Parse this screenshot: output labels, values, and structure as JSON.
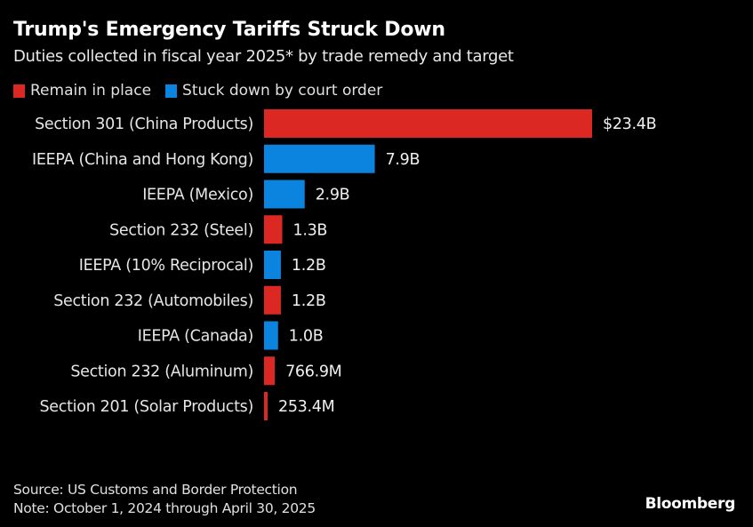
{
  "chart_data": {
    "type": "bar",
    "orientation": "horizontal",
    "title": "Trump's Emergency Tariffs Struck Down",
    "subtitle": "Duties collected in fiscal year 2025* by trade remedy and target",
    "xlabel": "",
    "ylabel": "",
    "unit": "USD billions",
    "xlim": [
      0,
      23.4
    ],
    "grid": false,
    "legend_position": "top-left",
    "legend": [
      {
        "key": "remain",
        "label": "Remain in place",
        "color": "#dc2822"
      },
      {
        "key": "struck",
        "label": "Stuck down by court order",
        "color": "#0a84de"
      }
    ],
    "categories": [
      "Section 301 (China Products)",
      "IEEPA (China and Hong Kong)",
      "IEEPA (Mexico)",
      "Section 232 (Steel)",
      "IEEPA (10% Reciprocal)",
      "Section 232 (Automobiles)",
      "IEEPA (Canada)",
      "Section 232 (Aluminum)",
      "Section 201 (Solar Products)"
    ],
    "values": [
      23.4,
      7.9,
      2.9,
      1.3,
      1.2,
      1.2,
      1.0,
      0.7669,
      0.2534
    ],
    "groups": [
      "remain",
      "struck",
      "struck",
      "remain",
      "struck",
      "remain",
      "struck",
      "remain",
      "remain"
    ],
    "value_labels": [
      "$23.4B",
      "7.9B",
      "2.9B",
      "1.3B",
      "1.2B",
      "1.2B",
      "1.0B",
      "766.9M",
      "253.4M"
    ]
  },
  "footer": {
    "source": "Source: US Customs and Border Protection",
    "note": "Note: October 1, 2024 through April 30, 2025",
    "brand": "Bloomberg"
  }
}
